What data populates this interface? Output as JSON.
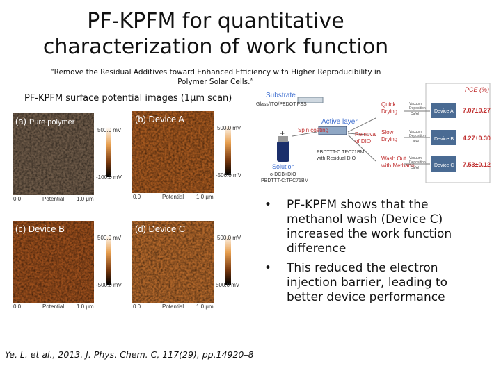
{
  "header": {
    "title": "PF-KPFM for quantitative characterization of work function",
    "quote": "“Remove the Residual Additives toward Enhanced Efficiency with Higher Reproducibility in Polymer Solar Cells.”"
  },
  "images_caption": "PF-KPFM surface potential images (1μm scan)",
  "panels": [
    {
      "label": "(a)",
      "sample": "Pure polymer",
      "scale_top": "500.0 mV",
      "scale_bottom": "-100.0 mV",
      "x_start": "0.0",
      "x_label": "Potential",
      "x_end": "1.0 μm"
    },
    {
      "label": "(b) Device A",
      "scale_top": "500.0 mV",
      "scale_bottom": "-500.0 mV",
      "x_start": "0.0",
      "x_label": "Potential",
      "x_end": "1.0 μm"
    },
    {
      "label": "(c) Device B",
      "scale_top": "500.0 mV",
      "scale_bottom": "-500.0 mV",
      "x_start": "0.0",
      "x_label": "Potential",
      "x_end": "1.0 μm"
    },
    {
      "label": "(d) Device C",
      "scale_top": "500.0 mV",
      "scale_bottom": "500.0 mV",
      "x_start": "0.0",
      "x_label": "Potential",
      "x_end": "1.0 μm"
    }
  ],
  "schematic": {
    "substrate": "Substrate",
    "substrate_detail": "Glass/ITO/PEDOT:PSS",
    "plus": "+",
    "solution": "Solution",
    "solvent": "o-DCB+DIO",
    "blend": "PBDTTT-C:TPC71BM",
    "spin_coating": "Spin coating",
    "active_layer": "Active layer",
    "film": "PBDTTT-C:TPC71BM",
    "film_detail": "with Residual DIO",
    "removal": "Removal",
    "removal_detail": "of DIO",
    "routes": [
      {
        "step": "Quick",
        "step2": "Drying",
        "deposition": "Vacuum",
        "deposition2": "Deposition",
        "deposition3": "Ca/Al",
        "device": "Device A",
        "pce": "7.07±0.27"
      },
      {
        "step": "Slow",
        "step2": "Drying",
        "deposition": "Vacuum",
        "deposition2": "Deposition",
        "deposition3": "Ca/Al",
        "device": "Device B",
        "pce": "4.27±0.30"
      },
      {
        "step": "Wash Out",
        "step2": "with Methanol",
        "deposition": "Vacuum",
        "deposition2": "Deposition",
        "deposition3": "Ca/Al",
        "device": "Device C",
        "pce": "7.53±0.12"
      }
    ],
    "pce_header": "PCE (%)"
  },
  "bullets": [
    "PF-KPFM shows that the methanol wash (Device C) increased the work function difference",
    "This reduced the electron injection barrier, leading to better device performance"
  ],
  "citation": "Ye, L. et al., 2013. J. Phys. Chem. C, 117(29), pp.14920–8"
}
